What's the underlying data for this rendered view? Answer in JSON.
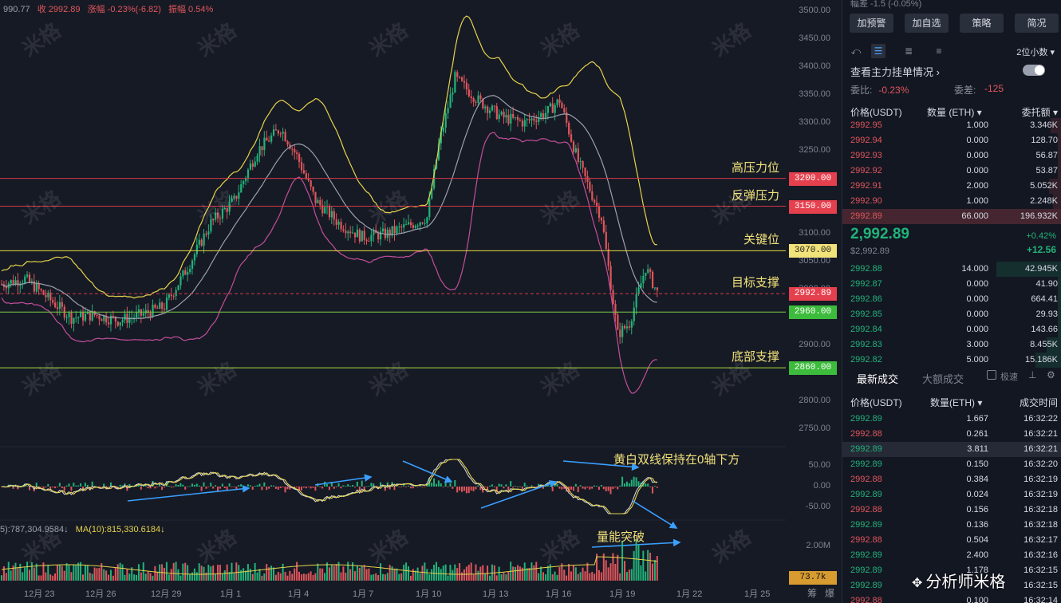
{
  "ohlc": {
    "open": "990.77",
    "close_label": "收 2992.89",
    "change_label": "涨幅 -0.23%(-6.82)",
    "amplitude_label": "振幅 0.54%"
  },
  "volume_legend": {
    "ma5": "5):787,304.9584↓",
    "ma10": "MA(10):815,330.6184↓"
  },
  "watermark_text": "米格",
  "price_axis": [
    "3500.00",
    "3450.00",
    "3400.00",
    "3350.00",
    "3300.00",
    "3250.00",
    "3200.00",
    "3150.00",
    "3100.00",
    "3050.00",
    "3000.00",
    "2950.00",
    "2900.00",
    "2850.00",
    "2800.00",
    "2750.00"
  ],
  "macd_axis": [
    "50.00",
    "0.00",
    "-50.00"
  ],
  "volume_axis": [
    "2.00M"
  ],
  "volume_tag": "73.7k",
  "date_axis": [
    "12月 23",
    "12月 26",
    "12月 29",
    "1月 1",
    "1月 4",
    "1月 7",
    "1月 10",
    "1月 13",
    "1月 16",
    "1月 19",
    "1月 22",
    "1月 25"
  ],
  "corner_buttons": [
    "筹",
    "爆"
  ],
  "levels": [
    {
      "price": 3200,
      "tag": "3200.00",
      "label": "高压力位",
      "line_color": "#d23a49",
      "tag_color": "#e5404e"
    },
    {
      "price": 3150,
      "tag": "3150.00",
      "label": "反弹压力",
      "line_color": "#d23a49",
      "tag_color": "#e5404e"
    },
    {
      "price": 3070,
      "tag": "3070.00",
      "label": "关键位",
      "line_color": "#e8d845",
      "tag_color": "#f2e27a",
      "tag_text_color": "#222222"
    },
    {
      "price": 2992.89,
      "tag": "2992.89",
      "label": "目标支撑",
      "line_color": "#d23a49",
      "tag_color": "#e5404e",
      "dashed": true
    },
    {
      "price": 2960,
      "tag": "2960.00",
      "label": "",
      "line_color": "#7ac943",
      "tag_color": "#3dbb3d"
    },
    {
      "price": 2860,
      "tag": "2860.00",
      "label": "底部支撑",
      "line_color": "#a7d93a",
      "tag_color": "#3dbb3d"
    }
  ],
  "annotations": {
    "macd_note": "黄白双线保持在0轴下方",
    "volume_note": "量能突破"
  },
  "colors": {
    "up": "#21b37a",
    "down": "#e0565b",
    "boll_upper": "#e7d34a",
    "boll_mid": "#9aa0ad",
    "boll_lower": "#c24f9c",
    "arrow": "#3aa0ff"
  },
  "chart_data": {
    "type": "candlestick",
    "ylim": [
      2750,
      3500
    ],
    "overlays": [
      "Bollinger upper",
      "Bollinger mid",
      "Bollinger lower"
    ],
    "last_price": 2992.89,
    "x_labels": [
      "12月 23",
      "12月 26",
      "12月 29",
      "1月 1",
      "1月 4",
      "1月 7",
      "1月 10",
      "1月 13",
      "1月 16",
      "1月 19",
      "1月 22",
      "1月 25"
    ],
    "price_path": [
      [
        0,
        3010
      ],
      [
        10,
        3020
      ],
      [
        20,
        2985
      ],
      [
        30,
        2950
      ],
      [
        40,
        2955
      ],
      [
        50,
        2945
      ],
      [
        60,
        2955
      ],
      [
        70,
        2970
      ],
      [
        80,
        3040
      ],
      [
        90,
        3120
      ],
      [
        100,
        3160
      ],
      [
        110,
        3250
      ],
      [
        120,
        3290
      ],
      [
        127,
        3240
      ],
      [
        135,
        3160
      ],
      [
        145,
        3120
      ],
      [
        155,
        3095
      ],
      [
        165,
        3100
      ],
      [
        175,
        3115
      ],
      [
        183,
        3130
      ],
      [
        188,
        3260
      ],
      [
        195,
        3380
      ],
      [
        205,
        3340
      ],
      [
        215,
        3310
      ],
      [
        225,
        3300
      ],
      [
        235,
        3320
      ],
      [
        240,
        3340
      ],
      [
        248,
        3230
      ],
      [
        258,
        3130
      ],
      [
        265,
        2920
      ],
      [
        270,
        2940
      ],
      [
        277,
        3040
      ],
      [
        282,
        2995
      ]
    ]
  },
  "panel": {
    "top_text": "幅差  -1.5 (-0.05%)",
    "buttons": [
      "加预警",
      "加自选",
      "策略",
      "简况"
    ],
    "decimals": "2位小数 ▾",
    "depth_link": "查看主力挂单情况 ›",
    "ratio_label": "委比:",
    "ratio_value": "-0.23%",
    "diff_label": "委差:",
    "diff_value": "-125",
    "ob_headers": [
      "价格(USDT)",
      "数量 (ETH) ▾",
      "委托额 ▾"
    ],
    "asks": [
      {
        "price": "2992.95",
        "qty": "1.000",
        "amount": "3.346K",
        "depth": 0.05
      },
      {
        "price": "2992.94",
        "qty": "0.000",
        "amount": "128.70",
        "depth": 0.02
      },
      {
        "price": "2992.93",
        "qty": "0.000",
        "amount": "56.87",
        "depth": 0.01
      },
      {
        "price": "2992.92",
        "qty": "0.000",
        "amount": "53.87",
        "depth": 0.01
      },
      {
        "price": "2992.91",
        "qty": "2.000",
        "amount": "5.052K",
        "depth": 0.06
      },
      {
        "price": "2992.90",
        "qty": "1.000",
        "amount": "2.248K",
        "depth": 0.04
      },
      {
        "price": "2992.89",
        "qty": "66.000",
        "amount": "196.932K",
        "depth": 1.0
      }
    ],
    "last": {
      "price": "2,992.89",
      "sub": "$2,992.89",
      "pct": "+0.42%",
      "abs": "+12.56"
    },
    "bids": [
      {
        "price": "2992.88",
        "qty": "14.000",
        "amount": "42.945K",
        "depth": 0.3
      },
      {
        "price": "2992.87",
        "qty": "0.000",
        "amount": "41.90",
        "depth": 0.01
      },
      {
        "price": "2992.86",
        "qty": "0.000",
        "amount": "664.41",
        "depth": 0.02
      },
      {
        "price": "2992.85",
        "qty": "0.000",
        "amount": "29.93",
        "depth": 0.01
      },
      {
        "price": "2992.84",
        "qty": "0.000",
        "amount": "143.66",
        "depth": 0.01
      },
      {
        "price": "2992.83",
        "qty": "3.000",
        "amount": "8.455K",
        "depth": 0.07
      },
      {
        "price": "2992.82",
        "qty": "5.000",
        "amount": "15.186K",
        "depth": 0.12
      }
    ],
    "trade_tabs": [
      "最新成交",
      "大额成交"
    ],
    "fast_label": "极速",
    "trade_headers": [
      "价格(USDT)",
      "数量(ETH) ▾",
      "成交时间"
    ],
    "trades": [
      {
        "price": "2992.89",
        "qty": "1.667",
        "time": "16:32:22",
        "dir": "up"
      },
      {
        "price": "2992.88",
        "qty": "0.261",
        "time": "16:32:21",
        "dir": "down"
      },
      {
        "price": "2992.89",
        "qty": "3.811",
        "time": "16:32:21",
        "dir": "up",
        "hl": true
      },
      {
        "price": "2992.89",
        "qty": "0.150",
        "time": "16:32:20",
        "dir": "up"
      },
      {
        "price": "2992.88",
        "qty": "0.384",
        "time": "16:32:19",
        "dir": "down"
      },
      {
        "price": "2992.89",
        "qty": "0.024",
        "time": "16:32:19",
        "dir": "up"
      },
      {
        "price": "2992.88",
        "qty": "0.156",
        "time": "16:32:18",
        "dir": "down"
      },
      {
        "price": "2992.89",
        "qty": "0.136",
        "time": "16:32:18",
        "dir": "up"
      },
      {
        "price": "2992.88",
        "qty": "0.504",
        "time": "16:32:17",
        "dir": "down"
      },
      {
        "price": "2992.89",
        "qty": "2.400",
        "time": "16:32:16",
        "dir": "up"
      },
      {
        "price": "2992.89",
        "qty": "1.178",
        "time": "16:32:15",
        "dir": "up"
      },
      {
        "price": "2992.89",
        "qty": "",
        "time": "16:32:15",
        "dir": "up"
      },
      {
        "price": "2992.88",
        "qty": "0.100",
        "time": "16:32:14",
        "dir": "down"
      }
    ],
    "footer_mark": "分析师米格"
  }
}
